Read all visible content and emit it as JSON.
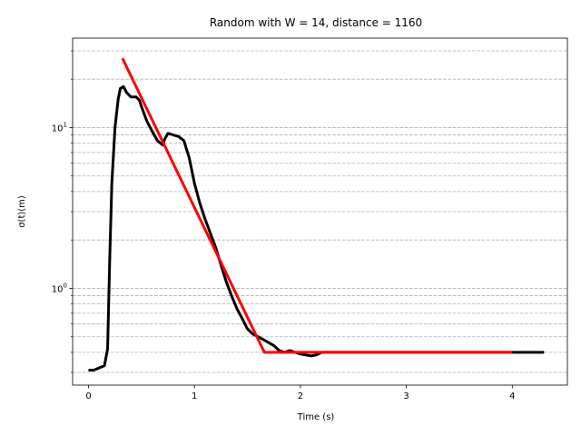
{
  "chart_data": {
    "type": "line",
    "title": "Random with W = 14, distance = 1160",
    "xlabel": "Time (s)",
    "ylabel": "σ(t)(m)",
    "yscale": "log",
    "xlim": [
      -0.15,
      4.52
    ],
    "ylim": [
      0.25,
      36
    ],
    "grid": {
      "y_major": true,
      "y_minor": true,
      "x": false,
      "style": "dashed"
    },
    "x_ticks": [
      {
        "value": 0,
        "label": "0"
      },
      {
        "value": 1,
        "label": "1"
      },
      {
        "value": 2,
        "label": "2"
      },
      {
        "value": 3,
        "label": "3"
      },
      {
        "value": 4,
        "label": "4"
      }
    ],
    "y_ticks": [
      {
        "value": 1,
        "label": "10",
        "exp": "0"
      },
      {
        "value": 10,
        "label": "10",
        "exp": "1"
      }
    ],
    "series": [
      {
        "color": "#000000",
        "x": [
          0,
          0.05,
          0.1,
          0.15,
          0.18,
          0.2,
          0.22,
          0.25,
          0.28,
          0.3,
          0.33,
          0.36,
          0.4,
          0.45,
          0.48,
          0.5,
          0.55,
          0.6,
          0.65,
          0.7,
          0.72,
          0.75,
          0.8,
          0.85,
          0.9,
          0.95,
          1.0,
          1.05,
          1.1,
          1.15,
          1.2,
          1.25,
          1.3,
          1.35,
          1.4,
          1.45,
          1.5,
          1.55,
          1.6,
          1.65,
          1.7,
          1.75,
          1.8,
          1.85,
          1.9,
          1.95,
          2.0,
          2.05,
          2.1,
          2.15,
          2.2,
          2.3,
          2.5,
          3.0,
          3.5,
          4.0,
          4.3
        ],
        "y": [
          0.31,
          0.31,
          0.32,
          0.33,
          0.42,
          1.5,
          4.5,
          10,
          15,
          17.5,
          18,
          16.5,
          15.5,
          15.5,
          14.8,
          13.5,
          11,
          9.5,
          8.3,
          7.8,
          8.5,
          9.2,
          9.0,
          8.8,
          8.3,
          6.5,
          4.5,
          3.4,
          2.7,
          2.2,
          1.8,
          1.4,
          1.1,
          0.9,
          0.75,
          0.65,
          0.56,
          0.52,
          0.5,
          0.48,
          0.46,
          0.44,
          0.41,
          0.4,
          0.41,
          0.4,
          0.39,
          0.385,
          0.38,
          0.385,
          0.4,
          0.4,
          0.4,
          0.4,
          0.4,
          0.4,
          0.4
        ]
      },
      {
        "color": "#ff0000",
        "x": [
          0.32,
          1.66,
          4.0
        ],
        "y": [
          27,
          0.4,
          0.4
        ]
      }
    ]
  }
}
